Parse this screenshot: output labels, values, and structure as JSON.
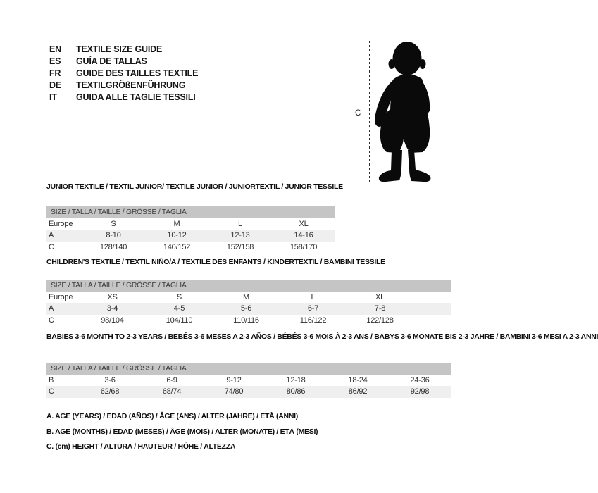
{
  "languages": [
    {
      "code": "EN",
      "label": "TEXTILE SIZE GUIDE"
    },
    {
      "code": "ES",
      "label": "GUÍA DE TALLAS"
    },
    {
      "code": "FR",
      "label": "GUIDE DES TAILLES TEXTILE"
    },
    {
      "code": "DE",
      "label": "TEXTILGRÖßENFÜHRUNG"
    },
    {
      "code": "IT",
      "label": "GUIDA ALLE TAGLIE TESSILI"
    }
  ],
  "figure": {
    "image_name": "toddler-silhouette",
    "measure_label": "C"
  },
  "tables": [
    {
      "title": "JUNIOR TEXTILE / TEXTIL JUNIOR/ TEXTILE JUNIOR / JUNIORTEXTIL / JUNIOR TESSILE",
      "header": "SIZE / TALLA / TAILLE / GRÖSSE / TAGLIA",
      "rows": [
        {
          "label": "Europe",
          "values": [
            "S",
            "M",
            "L",
            "XL"
          ]
        },
        {
          "label": "A",
          "values": [
            "8-10",
            "10-12",
            "12-13",
            "14-16"
          ]
        },
        {
          "label": "C",
          "values": [
            "128/140",
            "140/152",
            "152/158",
            "158/170"
          ]
        }
      ]
    },
    {
      "title": "CHILDREN'S TEXTILE / TEXTIL NIÑO/A / TEXTILE DES ENFANTS / KINDERTEXTIL / BAMBINI TESSILE",
      "header": "SIZE / TALLA / TAILLE / GRÖSSE / TAGLIA",
      "rows": [
        {
          "label": "Europe",
          "values": [
            "XS",
            "S",
            "M",
            "L",
            "XL"
          ]
        },
        {
          "label": "A",
          "values": [
            "3-4",
            "4-5",
            "5-6",
            "6-7",
            "7-8"
          ]
        },
        {
          "label": "C",
          "values": [
            "98/104",
            "104/110",
            "110/116",
            "116/122",
            "122/128"
          ]
        }
      ]
    },
    {
      "title": "BABIES 3-6 MONTH TO 2-3 YEARS / BEBÉS 3-6 MESES A 2-3 AÑOS / BÉBÉS 3-6 MOIS À 2-3 ANS / BABYS 3-6 MONATE BIS 2-3 JAHRE / BAMBINI 3-6 MESI A 2-3 ANNI",
      "header": "SIZE / TALLA / TAILLE / GRÖSSE / TAGLIA",
      "rows": [
        {
          "label": "B",
          "values": [
            "3-6",
            "6-9",
            "9-12",
            "12-18",
            "18-24",
            "24-36"
          ]
        },
        {
          "label": "C",
          "values": [
            "62/68",
            "68/74",
            "74/80",
            "80/86",
            "86/92",
            "92/98"
          ]
        }
      ]
    }
  ],
  "notes": [
    "A. AGE (YEARS) / EDAD (AÑOS) / ÂGE (ANS) / ALTER (JAHRE) / ETÀ (ANNI)",
    "B. AGE (MONTHS) / EDAD (MESES) / ÂGE (MOIS) / ALTER (MONATE) / ETÀ (MESI)",
    "C. (cm) HEIGHT / ALTURA / HAUTEUR / HÖHE / ALTEZZA"
  ],
  "colors": {
    "table_header_bg": "#c5c5c5",
    "row_stripe_bg": "#efefef",
    "silhouette": "#0a0a0a",
    "text": "#151515"
  }
}
